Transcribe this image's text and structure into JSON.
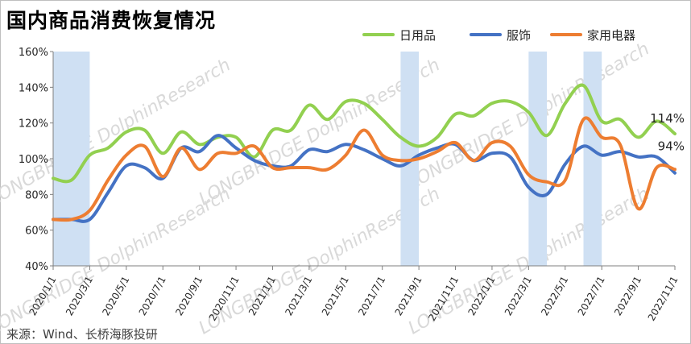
{
  "title": "国内商品消费恢复情况",
  "source": "来源：Wind、长桥海豚投研",
  "chart_data": {
    "type": "line",
    "ylim": [
      40,
      160
    ],
    "yticks": [
      "40%",
      "60%",
      "80%",
      "100%",
      "120%",
      "140%",
      "160%"
    ],
    "x_labels": [
      "2020/1/1",
      "2020/3/1",
      "2020/5/1",
      "2020/7/1",
      "2020/9/1",
      "2020/11/1",
      "2021/1/1",
      "2021/3/1",
      "2021/5/1",
      "2021/7/1",
      "2021/9/1",
      "2021/11/1",
      "2022/1/1",
      "2022/3/1",
      "2022/5/1",
      "2022/7/1",
      "2022/9/1",
      "2022/11/1"
    ],
    "legend_position": "top-right",
    "shaded_periods": [
      [
        0,
        2
      ],
      [
        19,
        20
      ],
      [
        26,
        27
      ],
      [
        29,
        30
      ]
    ],
    "series": [
      {
        "name": "日用品",
        "color": "#92d050",
        "values": [
          89,
          88,
          102,
          106,
          115,
          116,
          103,
          115,
          108,
          112,
          112,
          101,
          116,
          116,
          130,
          122,
          132,
          131,
          122,
          112,
          107,
          112,
          125,
          124,
          131,
          132,
          126,
          113,
          131,
          141,
          121,
          122,
          112,
          121,
          114
        ]
      },
      {
        "name": "服饰",
        "color": "#4472c4",
        "values": [
          66,
          66,
          66,
          81,
          96,
          95,
          89,
          106,
          104,
          113,
          106,
          99,
          96,
          96,
          105,
          104,
          108,
          105,
          100,
          96,
          102,
          106,
          108,
          99,
          103,
          101,
          84,
          80,
          97,
          107,
          102,
          104,
          101,
          101,
          92
        ]
      },
      {
        "name": "家用电器",
        "color": "#ed7d31",
        "values": [
          66,
          66,
          71,
          88,
          102,
          107,
          90,
          106,
          94,
          103,
          103,
          107,
          95,
          95,
          95,
          94,
          102,
          116,
          102,
          99,
          100,
          104,
          109,
          99,
          109,
          107,
          91,
          87,
          88,
          122,
          112,
          108,
          72,
          95,
          94
        ]
      }
    ],
    "annotations": [
      {
        "series": 0,
        "text": "114%"
      },
      {
        "series": 2,
        "text": "94%"
      }
    ],
    "watermark": "LONGBRIDGE DolphinResearch"
  }
}
